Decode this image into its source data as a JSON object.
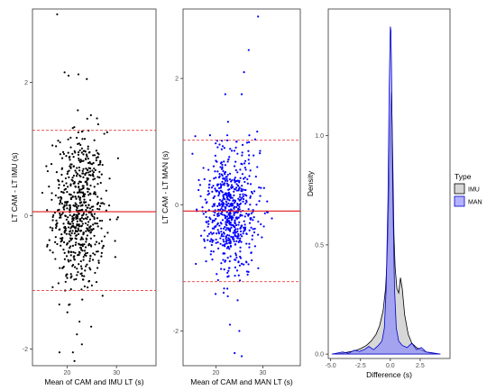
{
  "chart_data": [
    {
      "type": "scatter",
      "xlabel": "Mean of CAM and IMU LT (s)",
      "ylabel": "LT CAM - LT IMU (s)",
      "xlim": [
        13,
        38
      ],
      "ylim": [
        -2.25,
        3.1
      ],
      "x_ticks": [
        {
          "v": 20,
          "label": "20"
        },
        {
          "v": 30,
          "label": "30"
        }
      ],
      "y_ticks": [
        {
          "v": -2,
          "label": "-2"
        },
        {
          "v": 0,
          "label": "0"
        },
        {
          "v": 2,
          "label": "2"
        }
      ],
      "point_color": "#000000",
      "mean_bias": 0.06,
      "loa_lower": -1.12,
      "loa_upper": 1.28,
      "line_color": "#e31a1c",
      "n_points": 650,
      "x_center": 22.5,
      "x_spread": 2.6,
      "y_spread": 0.6,
      "outliers": [
        [
          18.0,
          3.02
        ],
        [
          19.5,
          2.15
        ],
        [
          20.3,
          2.1
        ],
        [
          22.3,
          2.12
        ],
        [
          24.0,
          2.05
        ],
        [
          21.5,
          -2.18
        ],
        [
          23.0,
          -1.93
        ],
        [
          22.0,
          -1.78
        ]
      ]
    },
    {
      "type": "scatter",
      "xlabel": "Mean of CAM and MAN LT (s)",
      "ylabel": "LT CAM - LT MAN (s)",
      "xlim": [
        13,
        38
      ],
      "ylim": [
        -2.55,
        3.1
      ],
      "x_ticks": [
        {
          "v": 20,
          "label": "20"
        },
        {
          "v": 30,
          "label": "30"
        }
      ],
      "y_ticks": [
        {
          "v": -2,
          "label": "-2"
        },
        {
          "v": 0,
          "label": "0"
        },
        {
          "v": 2,
          "label": "2"
        }
      ],
      "point_color": "#0000ff",
      "mean_bias": -0.1,
      "loa_lower": -1.22,
      "loa_upper": 1.02,
      "line_color": "#e31a1c",
      "n_points": 650,
      "x_center": 23.0,
      "x_spread": 2.8,
      "y_spread": 0.5,
      "outliers": [
        [
          29.0,
          2.98
        ],
        [
          27.0,
          2.45
        ],
        [
          26.0,
          2.1
        ],
        [
          25.5,
          1.75
        ],
        [
          22.0,
          1.75
        ],
        [
          24.0,
          -2.35
        ],
        [
          25.5,
          -2.4
        ],
        [
          23.0,
          -1.9
        ],
        [
          25.0,
          -2.0
        ]
      ]
    },
    {
      "type": "area",
      "xlabel": "Difference (s)",
      "ylabel": "Density",
      "xlim": [
        -5.2,
        5.0
      ],
      "ylim": [
        -0.02,
        1.58
      ],
      "x_ticks": [
        {
          "v": -5,
          "label": "-5.0"
        },
        {
          "v": -2.5,
          "label": "-2.5"
        },
        {
          "v": 0,
          "label": "0.0"
        },
        {
          "v": 2.5,
          "label": "2.5"
        }
      ],
      "y_ticks": [
        {
          "v": 0,
          "label": "0.0"
        },
        {
          "v": 0.5,
          "label": "0.5"
        },
        {
          "v": 1.0,
          "label": "1.0"
        }
      ],
      "legend_title": "Type",
      "legend_position": "right",
      "series": [
        {
          "name": "IMU",
          "fill": "#bdbdbd",
          "stroke": "#000000",
          "x": [
            -4.9,
            -4.5,
            -4.0,
            -3.5,
            -3.0,
            -2.5,
            -2.0,
            -1.6,
            -1.2,
            -0.9,
            -0.6,
            -0.4,
            -0.3,
            -0.2,
            -0.1,
            0.0,
            0.1,
            0.2,
            0.3,
            0.4,
            0.55,
            0.7,
            0.85,
            1.0,
            1.2,
            1.5,
            1.8,
            2.2,
            2.6,
            3.0,
            3.5,
            4.2
          ],
          "y": [
            0.0,
            0.0,
            0.004,
            0.01,
            0.015,
            0.025,
            0.04,
            0.06,
            0.09,
            0.13,
            0.2,
            0.3,
            0.4,
            0.55,
            0.8,
            1.05,
            1.2,
            0.9,
            0.55,
            0.4,
            0.3,
            0.28,
            0.35,
            0.3,
            0.18,
            0.09,
            0.05,
            0.03,
            0.018,
            0.01,
            0.004,
            0.0
          ]
        },
        {
          "name": "MAN",
          "fill": "#8080ff",
          "stroke": "#0000cc",
          "x": [
            -4.9,
            -4.5,
            -4.0,
            -3.5,
            -3.0,
            -2.6,
            -2.2,
            -1.8,
            -1.4,
            -1.0,
            -0.7,
            -0.5,
            -0.35,
            -0.2,
            -0.1,
            0.0,
            0.05,
            0.1,
            0.2,
            0.35,
            0.5,
            0.7,
            1.0,
            1.4,
            1.8,
            2.2,
            2.6,
            3.0,
            3.5,
            4.2
          ],
          "y": [
            0.0,
            0.004,
            0.01,
            0.004,
            0.018,
            0.012,
            0.02,
            0.035,
            0.02,
            0.04,
            0.06,
            0.12,
            0.3,
            0.7,
            1.2,
            1.5,
            1.48,
            1.3,
            0.75,
            0.3,
            0.12,
            0.06,
            0.04,
            0.03,
            0.05,
            0.02,
            0.03,
            0.01,
            0.006,
            0.0
          ]
        }
      ]
    }
  ]
}
